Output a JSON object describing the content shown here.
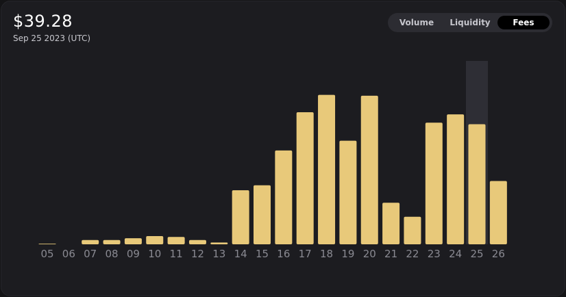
{
  "header": {
    "value": "$39.28",
    "date": "Sep 25 2023 (UTC)"
  },
  "tabs": [
    {
      "label": "Volume",
      "active": false
    },
    {
      "label": "Liquidity",
      "active": false
    },
    {
      "label": "Fees",
      "active": true
    }
  ],
  "colors": {
    "bar": "#e8c97a",
    "highlight": "#2e2e35",
    "tick": "#8a8a92"
  },
  "chart_data": {
    "type": "bar",
    "title": "",
    "xlabel": "",
    "ylabel": "",
    "categories": [
      "05",
      "06",
      "07",
      "08",
      "09",
      "10",
      "11",
      "12",
      "13",
      "14",
      "15",
      "16",
      "17",
      "18",
      "19",
      "20",
      "21",
      "22",
      "23",
      "24",
      "25",
      "26"
    ],
    "values": [
      0.2,
      0,
      1.4,
      1.4,
      2.0,
      2.7,
      2.4,
      1.4,
      0.6,
      17.7,
      19.3,
      30.7,
      43.2,
      48.9,
      33.9,
      48.6,
      13.6,
      9.0,
      39.8,
      42.5,
      39.28,
      20.7
    ],
    "highlighted_category": "25",
    "ylim": [
      0,
      60
    ],
    "grid": false,
    "legend": "none"
  }
}
